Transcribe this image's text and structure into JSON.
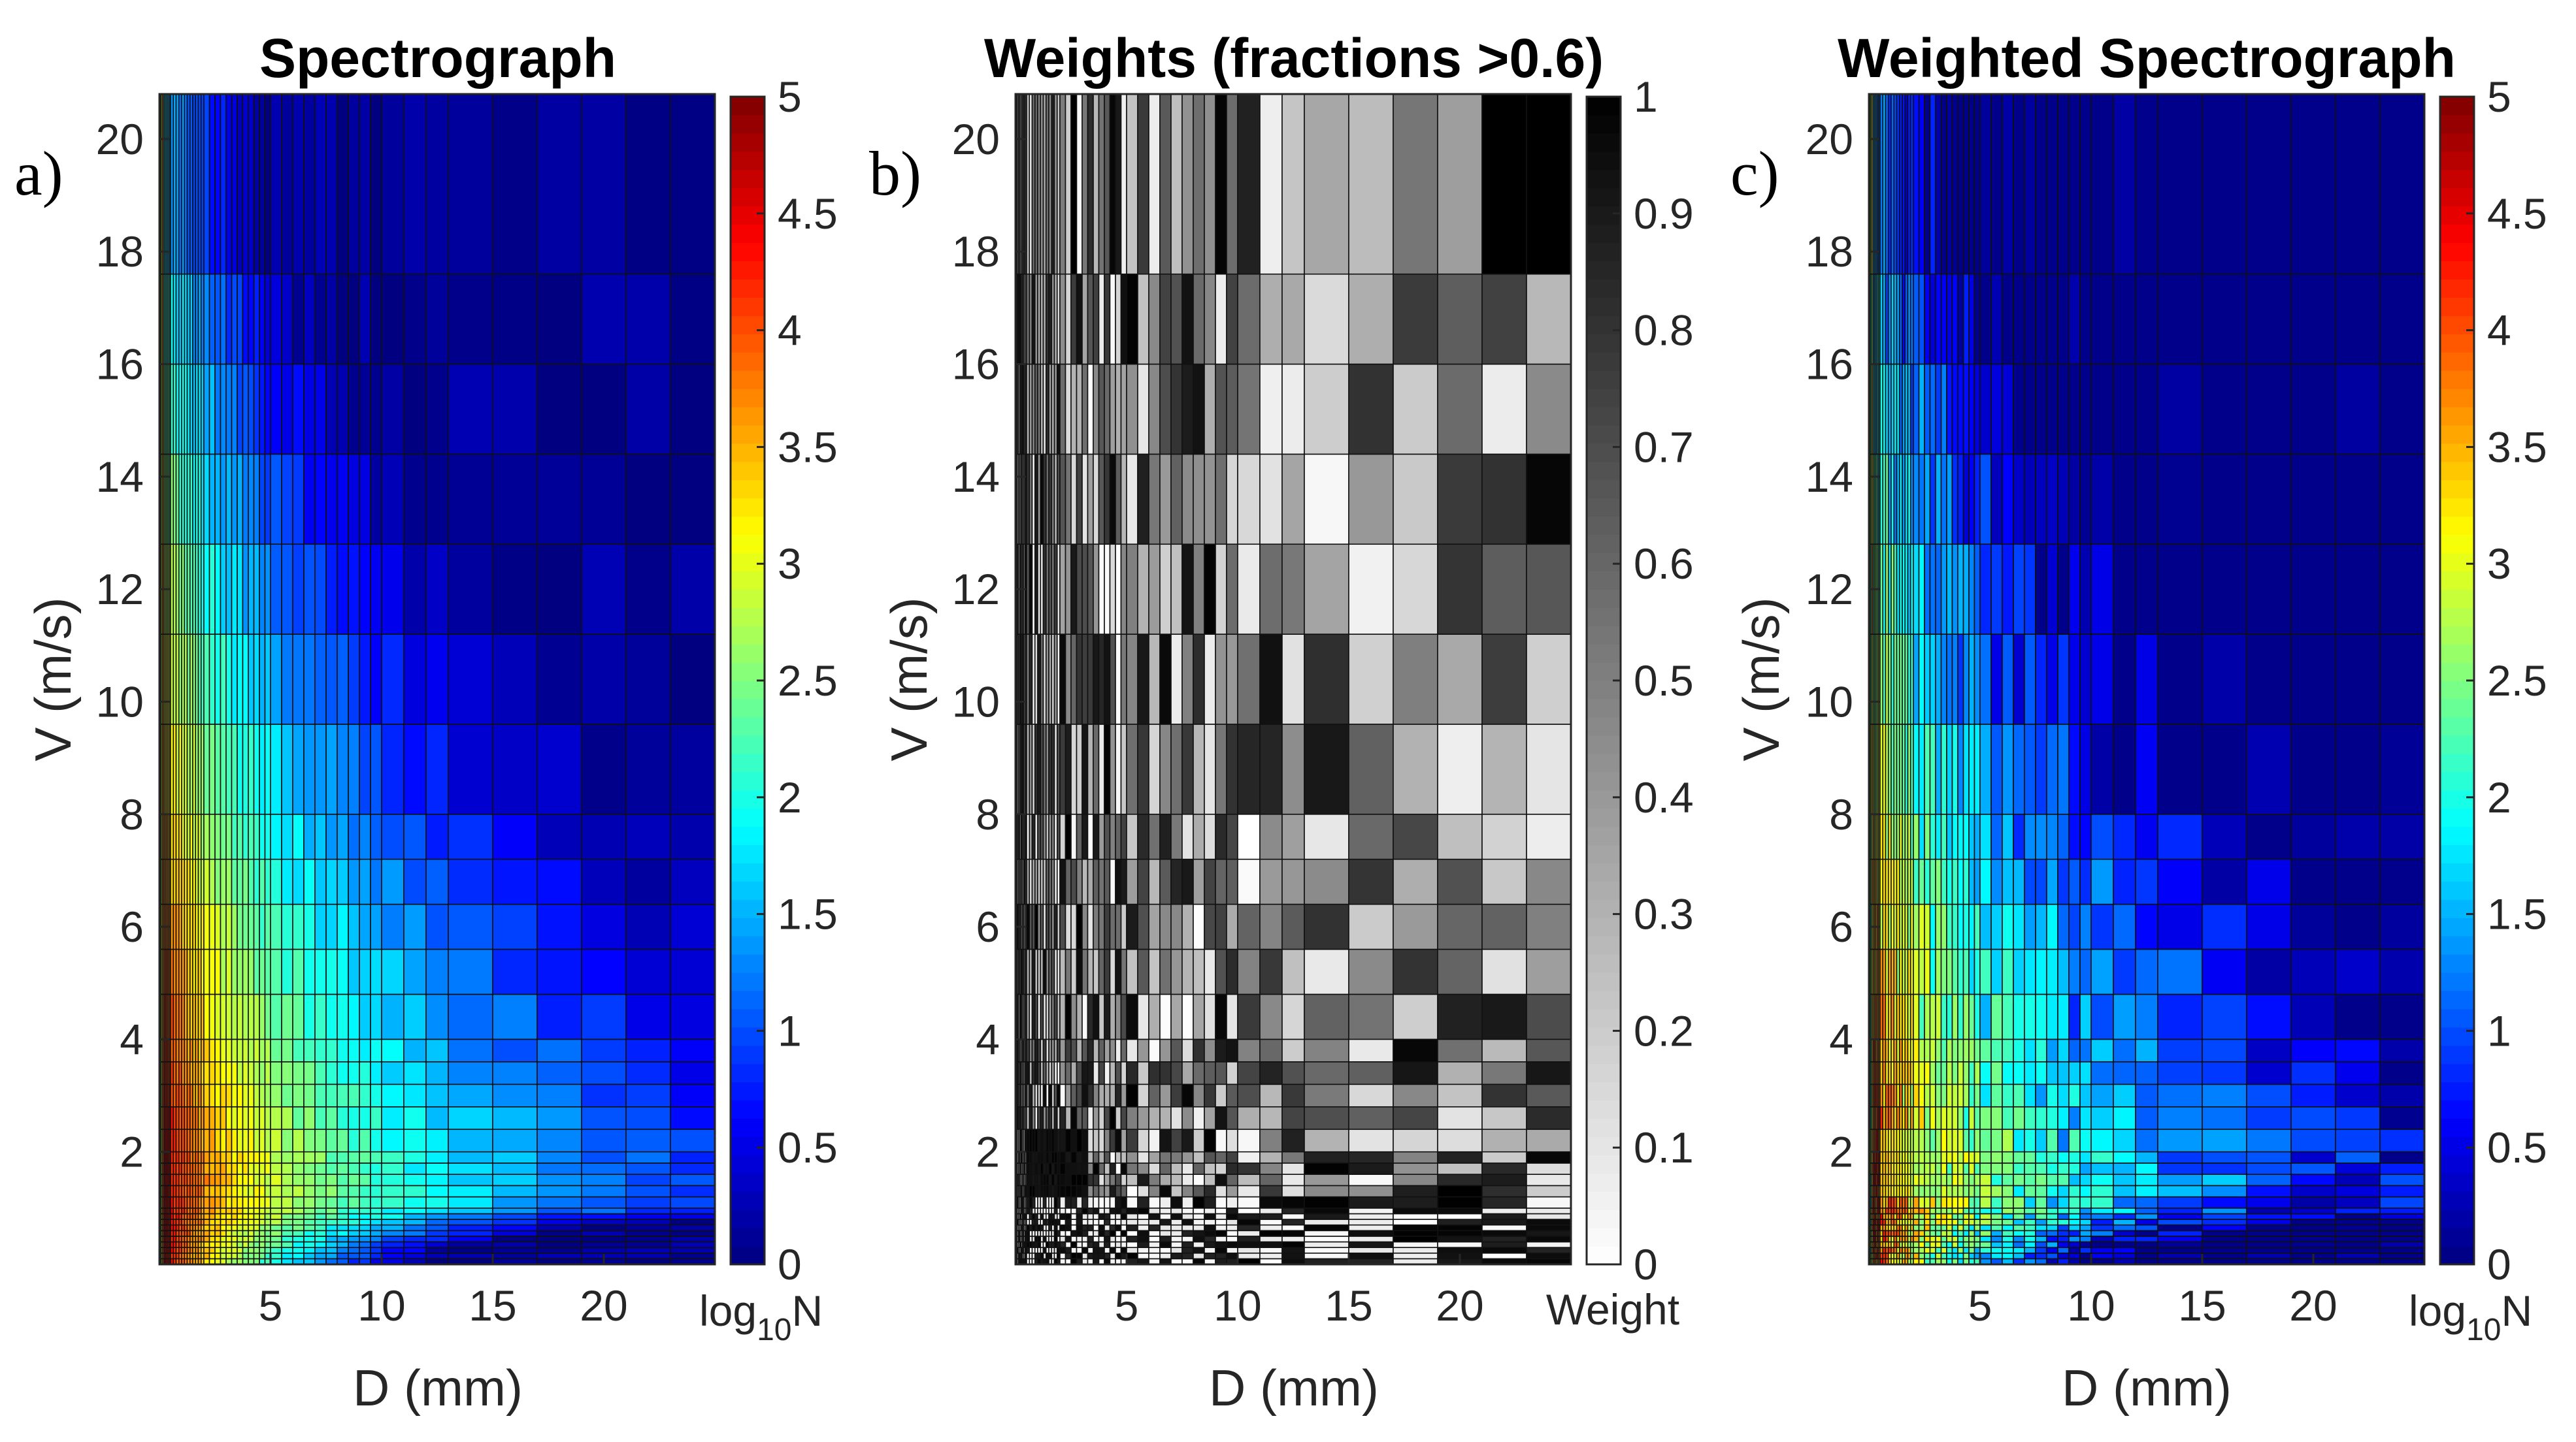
{
  "chart_data": [
    {
      "panel": "a)",
      "type": "heatmap",
      "title": "Spectrograph",
      "xlabel": "D (mm)",
      "ylabel": "V (m/s)",
      "colormap": "jet",
      "colorbar_label": "log10N",
      "colorbar_label_main": "log",
      "colorbar_label_sub": "10",
      "colorbar_label_tail": "N",
      "colorbar_range": [
        0,
        5
      ],
      "colorbar_ticks": [
        "0",
        "0.5",
        "1",
        "1.5",
        "2",
        "2.5",
        "3",
        "3.5",
        "4",
        "4.5",
        "5"
      ],
      "xlim": [
        0,
        25
      ],
      "ylim": [
        0,
        20.8
      ],
      "x_ticks": [
        "5",
        "10",
        "15",
        "20"
      ],
      "y_ticks": [
        "2",
        "4",
        "6",
        "8",
        "10",
        "12",
        "14",
        "16",
        "18",
        "20"
      ],
      "description_of_values": "log10 drop count; maximum (~4.8) at D < 2 mm and V around 1-3 m/s, decreasing toward larger D and higher V"
    },
    {
      "panel": "b)",
      "type": "heatmap",
      "title": "Weights (fractions >0.6)",
      "xlabel": "D (mm)",
      "ylabel": "V (m/s)",
      "colormap": "gray (0 = white, 1 = black)",
      "colorbar_label": "Weight",
      "colorbar_range": [
        0,
        1
      ],
      "colorbar_ticks": [
        "0",
        "0.1",
        "0.2",
        "0.3",
        "0.4",
        "0.5",
        "0.6",
        "0.7",
        "0.8",
        "0.9",
        "1"
      ],
      "xlim": [
        0,
        25
      ],
      "ylim": [
        0,
        20.8
      ],
      "x_ticks": [
        "5",
        "10",
        "15",
        "20"
      ],
      "y_ticks": [
        "2",
        "4",
        "6",
        "8",
        "10",
        "12",
        "14",
        "16",
        "18",
        "20"
      ],
      "description_of_values": "weight per bin between 0 and 1; dark (~1) block near D 1-3 mm, V 0.5-2 m/s and at D > 22 mm, V > 18 m/s"
    },
    {
      "panel": "c)",
      "type": "heatmap",
      "title": "Weighted Spectrograph",
      "xlabel": "D (mm)",
      "ylabel": "V (m/s)",
      "colormap": "jet",
      "colorbar_label": "log10N",
      "colorbar_label_main": "log",
      "colorbar_label_sub": "10",
      "colorbar_label_tail": "N",
      "colorbar_range": [
        0,
        5
      ],
      "colorbar_ticks": [
        "0",
        "0.5",
        "1",
        "1.5",
        "2",
        "2.5",
        "3",
        "3.5",
        "4",
        "4.5",
        "5"
      ],
      "xlim": [
        0,
        25
      ],
      "ylim": [
        0,
        20.8
      ],
      "x_ticks": [
        "5",
        "10",
        "15",
        "20"
      ],
      "y_ticks": [
        "2",
        "4",
        "6",
        "8",
        "10",
        "12",
        "14",
        "16",
        "18",
        "20"
      ],
      "description_of_values": "spectrograph multiplied by weights; peak (~4.5) at D < 3 mm, V 1-3 m/s; most large-D / high-V bins drop to 0.3-1"
    }
  ]
}
